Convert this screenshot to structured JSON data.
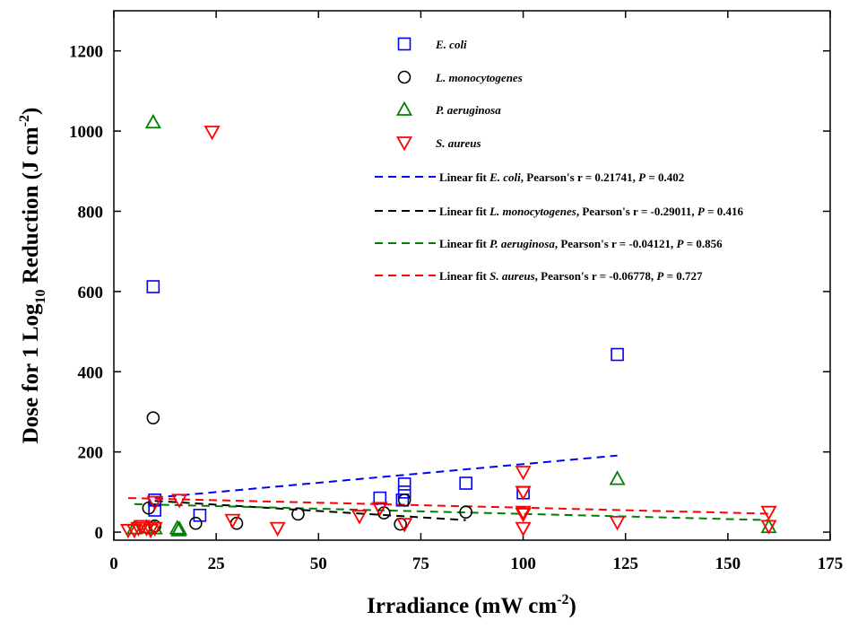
{
  "chart_data": {
    "type": "scatter",
    "xlabel": "Irradiance (mW cm",
    "xlabel_sup": "-2",
    "xlabel_end": ")",
    "ylabel_parts": [
      "Dose for 1 Log",
      "10",
      " Reduction (J cm",
      "-2",
      ")"
    ],
    "xlim": [
      0,
      175
    ],
    "ylim": [
      -20,
      1300
    ],
    "xticks": [
      0,
      25,
      50,
      75,
      100,
      125,
      150,
      175
    ],
    "yticks": [
      0,
      200,
      400,
      600,
      800,
      1000,
      1200
    ],
    "series": [
      {
        "name": "E. coli",
        "marker": "square",
        "color": "#0000ff",
        "points": [
          [
            9.6,
            612
          ],
          [
            10,
            80
          ],
          [
            10,
            55
          ],
          [
            21,
            42
          ],
          [
            65,
            85
          ],
          [
            71,
            120
          ],
          [
            71,
            100
          ],
          [
            70.5,
            80
          ],
          [
            86,
            122
          ],
          [
            100,
            98
          ],
          [
            123,
            443
          ]
        ]
      },
      {
        "name": "L. monocytogenes",
        "marker": "circle",
        "color": "#000000",
        "points": [
          [
            9.6,
            285
          ],
          [
            8.5,
            60
          ],
          [
            10,
            15
          ],
          [
            20,
            22
          ],
          [
            30,
            22
          ],
          [
            45,
            45
          ],
          [
            66,
            48
          ],
          [
            70,
            20
          ],
          [
            71,
            80
          ],
          [
            86,
            50
          ]
        ]
      },
      {
        "name": "P. aeruginosa",
        "marker": "triangle-up",
        "color": "#008000",
        "points": [
          [
            9.6,
            1022
          ],
          [
            5,
            10
          ],
          [
            8,
            12
          ],
          [
            10,
            10
          ],
          [
            15.5,
            10
          ],
          [
            16,
            8
          ],
          [
            15.8,
            5
          ],
          [
            123,
            133
          ],
          [
            160,
            13
          ]
        ]
      },
      {
        "name": "S. aureus",
        "marker": "triangle-down",
        "color": "#ff0000",
        "points": [
          [
            24,
            998
          ],
          [
            3.5,
            5
          ],
          [
            5,
            5
          ],
          [
            6,
            10
          ],
          [
            7,
            15
          ],
          [
            8,
            10
          ],
          [
            9,
            5
          ],
          [
            10,
            75
          ],
          [
            10,
            10
          ],
          [
            16,
            80
          ],
          [
            29,
            30
          ],
          [
            40,
            10
          ],
          [
            60,
            40
          ],
          [
            65,
            60
          ],
          [
            71,
            20
          ],
          [
            100,
            150
          ],
          [
            100,
            100
          ],
          [
            100,
            50
          ],
          [
            100,
            45
          ],
          [
            100,
            10
          ],
          [
            123,
            25
          ],
          [
            160,
            50
          ],
          [
            160,
            15
          ]
        ]
      }
    ],
    "fits": [
      {
        "label_pre": "Linear fit ",
        "label_species": "E. coli",
        "label_post": ", Pearson's r = 0.21741, ",
        "label_p": "P",
        "label_pval": " = 0.402",
        "color": "#0000ff",
        "x": [
          10,
          123
        ],
        "y": [
          86,
          191
        ]
      },
      {
        "label_pre": "Linear fit ",
        "label_species": "L. monocytogenes",
        "label_post": ", Pearson's r  = -0.29011, ",
        "label_p": "P",
        "label_pval": " = 0.416",
        "color": "#000000",
        "x": [
          10,
          86
        ],
        "y": [
          78,
          30
        ]
      },
      {
        "label_pre": "Linear fit ",
        "label_species": "P. aeruginosa",
        "label_post": ", Pearson's r  = -0.04121, ",
        "label_p": "P",
        "label_pval": " = 0.856",
        "color": "#008000",
        "x": [
          5,
          160
        ],
        "y": [
          70,
          30
        ]
      },
      {
        "label_pre": "Linear fit ",
        "label_species": "S. aureus",
        "label_post": ", Pearson's r  = -0.06778, ",
        "label_p": "P",
        "label_pval": " = 0.727",
        "color": "#ff0000",
        "x": [
          3.5,
          160
        ],
        "y": [
          85,
          46
        ]
      }
    ],
    "legend_position": "top-right",
    "grid": false
  }
}
